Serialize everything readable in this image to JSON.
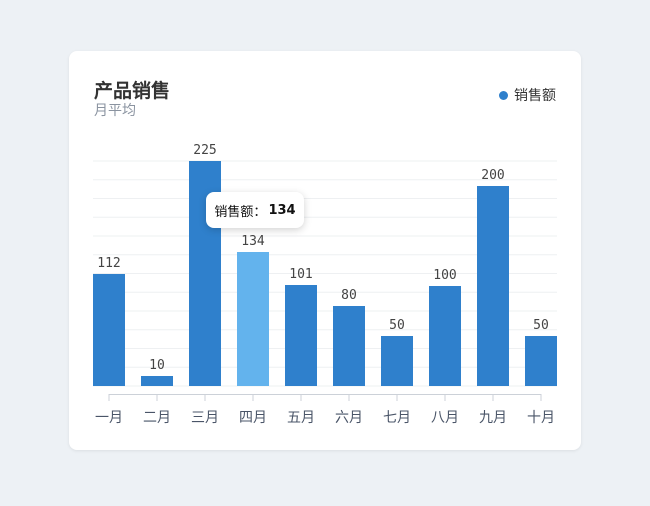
{
  "chart_data": {
    "type": "bar",
    "title": "产品销售",
    "subtitle": "月平均",
    "categories": [
      "一月",
      "二月",
      "三月",
      "四月",
      "五月",
      "六月",
      "七月",
      "八月",
      "九月",
      "十月"
    ],
    "series": [
      {
        "name": "销售额",
        "values": [
          112,
          10,
          225,
          134,
          101,
          80,
          50,
          100,
          200,
          50
        ],
        "color": "#2f80cc"
      }
    ],
    "highlight_index": 3,
    "highlight_color": "#63b3ed",
    "ylim": [
      0,
      225
    ],
    "grid": true,
    "legend": "top-right",
    "data_labels": true
  },
  "tooltip": {
    "label": "销售额：",
    "value": "134"
  }
}
